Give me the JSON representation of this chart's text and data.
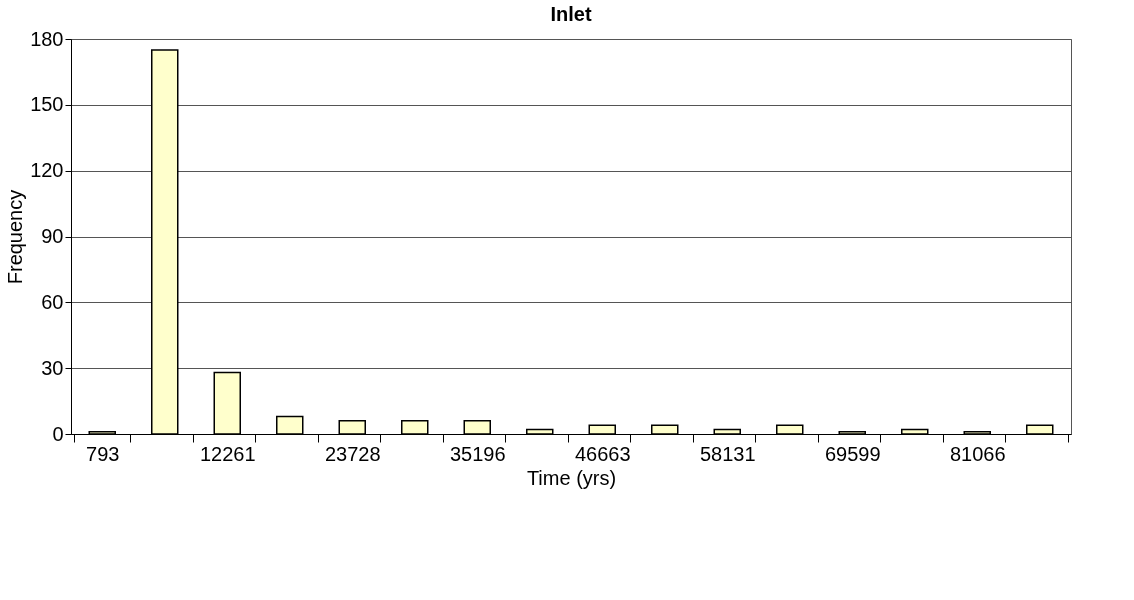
{
  "chart_data": {
    "type": "bar",
    "title": "Inlet",
    "xlabel": "Time (yrs)",
    "ylabel": "Frequency",
    "categories": [
      "793",
      null,
      "12261",
      null,
      "23728",
      null,
      "35196",
      null,
      "46663",
      null,
      "58131",
      null,
      "69599",
      null,
      "81066",
      null
    ],
    "series": [
      {
        "color": "#ffffcc",
        "values": [
          1,
          175,
          28,
          8,
          6,
          6,
          6,
          2,
          4,
          4,
          2,
          4,
          1,
          2,
          1,
          4
        ]
      }
    ],
    "ylim": [
      0,
      180
    ],
    "yticks": [
      0,
      30,
      60,
      90,
      120,
      150,
      180
    ],
    "grid": "y"
  }
}
